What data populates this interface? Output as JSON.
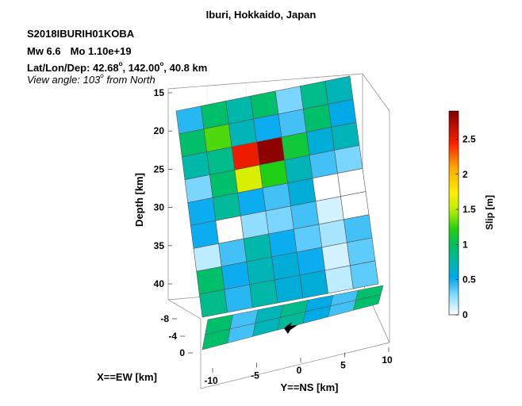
{
  "header": {
    "title": "Iburi, Hokkaido, Japan",
    "event_id": "S2018IBURIH01KOBA",
    "magnitude": "Mw 6.6",
    "moment": "Mo 1.10e+19",
    "location_prefix": "Lat/Lon/Dep: 42.68",
    "location_lon": ", 142.00",
    "location_depth": ", 40.8 km",
    "degree_sup": "o",
    "view_prefix": "View angle: 103",
    "view_suffix": " from North"
  },
  "chart_data": {
    "type": "heatmap",
    "title": "Iburi, Hokkaido, Japan",
    "zlabel": "Depth [km]",
    "xlabel": "X==EW [km]",
    "ylabel": "Y==NS [km]",
    "depth_ticks": [
      "15",
      "20",
      "25",
      "30",
      "35",
      "40"
    ],
    "ew_ticks": [
      "-8",
      "-4",
      "0"
    ],
    "ns_ticks": [
      "-10",
      "-5",
      "0",
      "5",
      "10"
    ],
    "colorbar": {
      "label": "Slip [m]",
      "range": [
        0,
        2.9
      ],
      "ticks": [
        "0",
        "0.5",
        "1",
        "1.5",
        "2",
        "2.5"
      ],
      "tick_values": [
        0,
        0.5,
        1,
        1.5,
        2,
        2.5
      ]
    },
    "slip_grid": [
      [
        0.45,
        0.95,
        0.75,
        0.95,
        0.3,
        0.85,
        0.7
      ],
      [
        0.95,
        1.3,
        0.7,
        0.5,
        0.4,
        0.95,
        0.55
      ],
      [
        0.75,
        0.85,
        2.5,
        2.85,
        1.1,
        0.6,
        0.7
      ],
      [
        0.3,
        0.95,
        1.6,
        1.2,
        0.7,
        0.4,
        0.3
      ],
      [
        0.5,
        0.8,
        0.5,
        0.4,
        0.6,
        0.0,
        0.0
      ],
      [
        0.5,
        0.0,
        0.25,
        0.3,
        0.4,
        0.1,
        0.0
      ],
      [
        0.15,
        0.4,
        0.75,
        0.5,
        0.35,
        0.2,
        0.4
      ],
      [
        0.95,
        0.5,
        0.7,
        0.6,
        0.5,
        0.1,
        0.35
      ],
      [
        0.85,
        0.45,
        0.75,
        0.6,
        0.6,
        0.15,
        0.35
      ]
    ],
    "projection_rows": [
      [
        0.95,
        0.4,
        0.7,
        0.85,
        0.55,
        0.4,
        0.95
      ],
      [
        0.95,
        0.4,
        0.7,
        0.8,
        0.55,
        0.4,
        0.95
      ]
    ]
  }
}
